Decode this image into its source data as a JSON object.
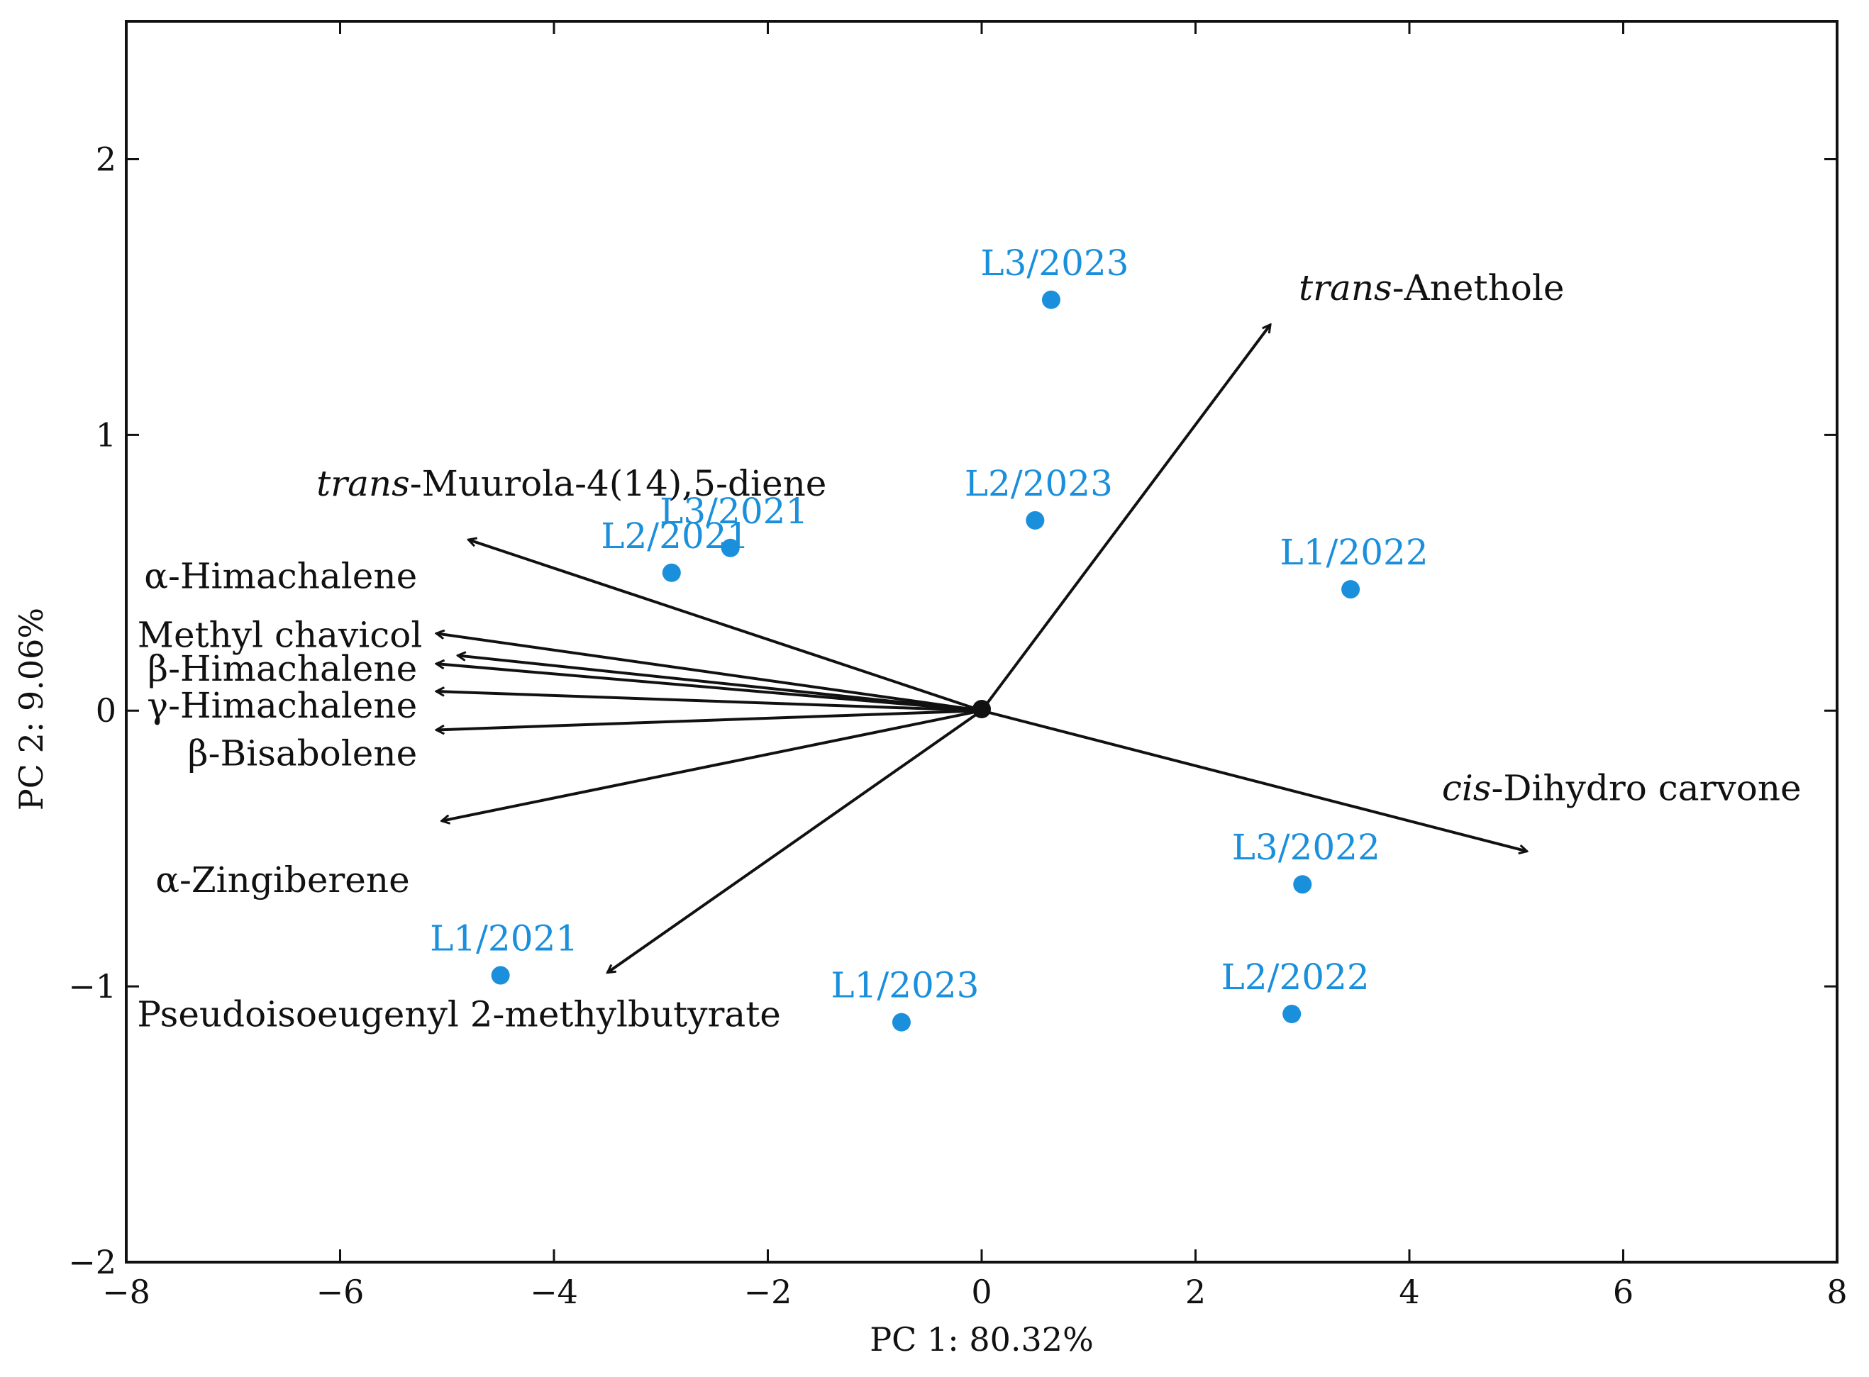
{
  "chart_data": {
    "type": "scatter",
    "title": "",
    "xlabel": "PC 1: 80.32%",
    "ylabel": "PC 2: 9.06%",
    "xlim": [
      -8,
      8
    ],
    "ylim": [
      -2,
      2.5
    ],
    "x_ticks": [
      -8,
      -6,
      -4,
      -2,
      0,
      2,
      4,
      6,
      8
    ],
    "y_ticks": [
      -2,
      -1,
      0,
      1,
      2
    ],
    "x_tick_labels": [
      "−8",
      "−6",
      "−4",
      "−2",
      "0",
      "2",
      "4",
      "6",
      "8"
    ],
    "y_tick_labels": [
      "−2",
      "−1",
      "0",
      "1",
      "2"
    ],
    "grid": false,
    "point_color": "#1a8fdc",
    "arrow_color": "#111111",
    "scores": [
      {
        "label": "L3/2023",
        "x": 0.65,
        "y": 1.49
      },
      {
        "label": "L2/2023",
        "x": 0.5,
        "y": 0.69
      },
      {
        "label": "L1/2022",
        "x": 3.45,
        "y": 0.44
      },
      {
        "label": "L2/2021",
        "x": -2.9,
        "y": 0.5
      },
      {
        "label": "L3/2021",
        "x": -2.35,
        "y": 0.59
      },
      {
        "label": "L3/2022",
        "x": 3.0,
        "y": -0.63
      },
      {
        "label": "L2/2022",
        "x": 2.9,
        "y": -1.1
      },
      {
        "label": "L1/2021",
        "x": -4.5,
        "y": -0.96
      },
      {
        "label": "L1/2023",
        "x": -0.75,
        "y": -1.13
      }
    ],
    "loadings": [
      {
        "prefix": "trans",
        "name": "-Anethole",
        "x": 2.7,
        "y": 1.4
      },
      {
        "prefix": "trans",
        "name": "-Muurola-4(14),5-diene",
        "x": -4.8,
        "y": 0.62
      },
      {
        "prefix": "",
        "name": "α-Himachalene",
        "x": -5.1,
        "y": 0.28
      },
      {
        "prefix": "",
        "name": "Methyl chavicol",
        "x": -4.9,
        "y": 0.2
      },
      {
        "prefix": "",
        "name": "β-Himachalene",
        "x": -5.1,
        "y": 0.17
      },
      {
        "prefix": "",
        "name": "γ-Himachalene",
        "x": -5.1,
        "y": 0.07
      },
      {
        "prefix": "",
        "name": "β-Bisabolene",
        "x": -5.1,
        "y": -0.07
      },
      {
        "prefix": "",
        "name": "α-Zingiberene",
        "x": -5.05,
        "y": -0.4
      },
      {
        "prefix": "",
        "name": "Pseudoisoeugenyl 2-methylbutyrate",
        "x": -3.5,
        "y": -0.95
      },
      {
        "prefix": "cis",
        "name": "-Dihydro carvone",
        "x": 5.1,
        "y": -0.51
      }
    ]
  }
}
